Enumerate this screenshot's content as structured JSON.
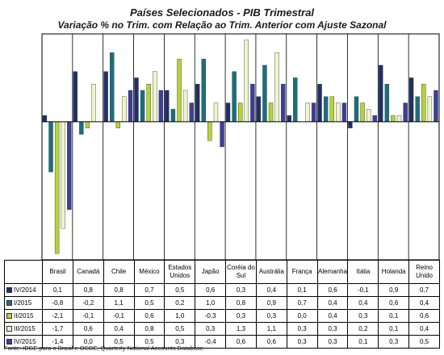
{
  "chart_data": {
    "type": "bar",
    "title": "Países Selecionados - PIB Trimestral",
    "subtitle": "Variação % no Trim. com Relação ao Trim. Anterior com Ajuste Sazonal",
    "categories": [
      "Brasil",
      "Canadá",
      "Chile",
      "México",
      "Estados Unidos",
      "Japão",
      "Coréia do Sul",
      "Austrália",
      "França",
      "Alemanha",
      "Itália",
      "Holanda",
      "Reino Unido"
    ],
    "series": [
      {
        "name": "IV/2014",
        "color": "#1f2f6b",
        "values": [
          0.1,
          0.8,
          0.8,
          0.7,
          0.5,
          0.6,
          0.3,
          0.4,
          0.1,
          0.6,
          -0.1,
          0.9,
          0.7
        ]
      },
      {
        "name": "I/2015",
        "color": "#1b6f7d",
        "values": [
          -0.8,
          -0.2,
          1.1,
          0.5,
          0.2,
          1.0,
          0.8,
          0.9,
          0.7,
          0.4,
          0.4,
          0.6,
          0.4
        ]
      },
      {
        "name": "II/2015",
        "color": "#b5d334",
        "values": [
          -2.1,
          -0.1,
          -0.1,
          0.6,
          1.0,
          -0.3,
          0.3,
          0.3,
          0.0,
          0.4,
          0.3,
          0.1,
          0.6
        ]
      },
      {
        "name": "III/2015",
        "color": "#eef5cc",
        "values": [
          -1.7,
          0.6,
          0.4,
          0.8,
          0.5,
          0.3,
          1.3,
          1.1,
          0.3,
          0.3,
          0.2,
          0.1,
          0.4
        ]
      },
      {
        "name": "IV/2015",
        "color": "#3b3f9a",
        "values": [
          -1.4,
          0.0,
          0.5,
          0.5,
          0.3,
          -0.4,
          0.6,
          0.6,
          0.3,
          0.3,
          0.1,
          0.3,
          0.5
        ]
      }
    ],
    "table_values": [
      [
        "0,1",
        "0,8",
        "0,8",
        "0,7",
        "0,5",
        "0,6",
        "0,3",
        "0,4",
        "0,1",
        "0,6",
        "-0,1",
        "0,9",
        "0,7"
      ],
      [
        "-0,8",
        "-0,2",
        "1,1",
        "0,5",
        "0,2",
        "1,0",
        "0,8",
        "0,9",
        "0,7",
        "0,4",
        "0,4",
        "0,6",
        "0,4"
      ],
      [
        "-2,1",
        "-0,1",
        "-0,1",
        "0,6",
        "1,0",
        "-0,3",
        "0,3",
        "0,3",
        "0,0",
        "0,4",
        "0,3",
        "0,1",
        "0,6"
      ],
      [
        "-1,7",
        "0,6",
        "0,4",
        "0,8",
        "0,5",
        "0,3",
        "1,3",
        "1,1",
        "0,3",
        "0,3",
        "0,2",
        "0,1",
        "0,4"
      ],
      [
        "-1,4",
        "0,0",
        "0,5",
        "0,5",
        "0,3",
        "-0,4",
        "0,6",
        "0,6",
        "0,3",
        "0,3",
        "0,1",
        "0,3",
        "0,5"
      ]
    ],
    "ylim": [
      -2.2,
      1.4
    ],
    "grid": "vertical separators",
    "legend": "data table"
  },
  "footnote": "Fonte: IBGE para o Brasil e OCDE, Quarterly National Accounts Database."
}
